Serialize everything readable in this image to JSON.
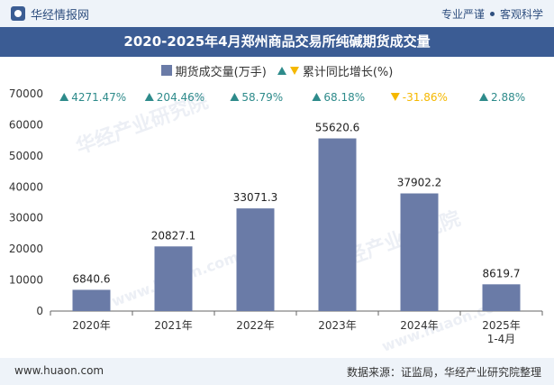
{
  "header": {
    "brand": "华经情报网",
    "tagline_left": "专业严谨",
    "tagline_right": "客观科学"
  },
  "chart_data": {
    "type": "bar",
    "title": "2020-2025年4月郑州商品交易所纯碱期货成交量",
    "categories": [
      "2020年",
      "2021年",
      "2022年",
      "2023年",
      "2024年",
      "2025年\n1-4月"
    ],
    "series": [
      {
        "name": "期货成交量(万手)",
        "values": [
          6840.6,
          20827.1,
          33071.3,
          55620.6,
          37902.2,
          8619.7
        ]
      }
    ],
    "growth": {
      "name": "累计同比增长(%)",
      "values": [
        4271.47,
        204.46,
        58.79,
        68.18,
        -31.86,
        2.88
      ],
      "labels": [
        "4271.47%",
        "204.46%",
        "58.79%",
        "68.18%",
        "-31.86%",
        "2.88%"
      ]
    },
    "ylim": [
      0,
      70000
    ],
    "yticks": [
      0,
      10000,
      20000,
      30000,
      40000,
      50000,
      60000,
      70000
    ],
    "colors": {
      "bar": "#6a7ba7",
      "up": "#2e8b8b",
      "down": "#f5b800",
      "axis": "#333333"
    }
  },
  "watermark": {
    "text_cn": "华经产业研究院",
    "text_en": "www.huaon.com"
  },
  "footer": {
    "url": "www.huaon.com",
    "source": "数据来源：证监局，华经产业研究院整理"
  }
}
